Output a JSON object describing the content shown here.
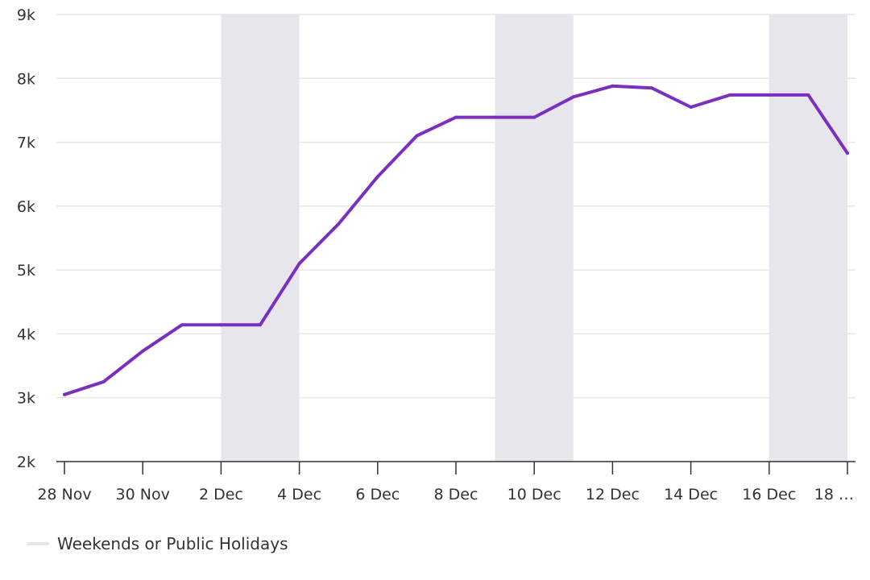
{
  "chart_data": {
    "type": "line",
    "title": "",
    "xlabel": "",
    "ylabel": "",
    "x": [
      "28 Nov",
      "29 Nov",
      "30 Nov",
      "1 Dec",
      "2 Dec",
      "3 Dec",
      "4 Dec",
      "5 Dec",
      "6 Dec",
      "7 Dec",
      "8 Dec",
      "9 Dec",
      "10 Dec",
      "11 Dec",
      "12 Dec",
      "13 Dec",
      "14 Dec",
      "15 Dec",
      "16 Dec",
      "17 Dec",
      "18 Dec"
    ],
    "x_tick_labels": [
      "28 Nov",
      "30 Nov",
      "2 Dec",
      "4 Dec",
      "6 Dec",
      "8 Dec",
      "10 Dec",
      "12 Dec",
      "14 Dec",
      "16 Dec",
      "18 …"
    ],
    "series": [
      {
        "values": [
          3050,
          3250,
          3730,
          4140,
          4140,
          4140,
          5100,
          5720,
          6460,
          7100,
          7390,
          7390,
          7390,
          7710,
          7880,
          7850,
          7550,
          7740,
          7740,
          7740,
          6830
        ],
        "color": "#7b2fbe"
      }
    ],
    "ylim": [
      2000,
      9000
    ],
    "y_ticks": [
      2000,
      3000,
      4000,
      5000,
      6000,
      7000,
      8000,
      9000
    ],
    "y_tick_labels": [
      "2k",
      "3k",
      "4k",
      "5k",
      "6k",
      "7k",
      "8k",
      "9k"
    ],
    "grid": true,
    "shaded_ranges": [
      {
        "start": "2 Dec",
        "end": "4 Dec"
      },
      {
        "start": "9 Dec",
        "end": "11 Dec"
      },
      {
        "start": "16 Dec",
        "end": "18 Dec"
      }
    ],
    "shade_color": "#e6e6ec",
    "legend": [
      {
        "label": "Weekends or Public Holidays",
        "color": "#e6e6ec"
      }
    ],
    "legend_position": "bottom-left"
  }
}
